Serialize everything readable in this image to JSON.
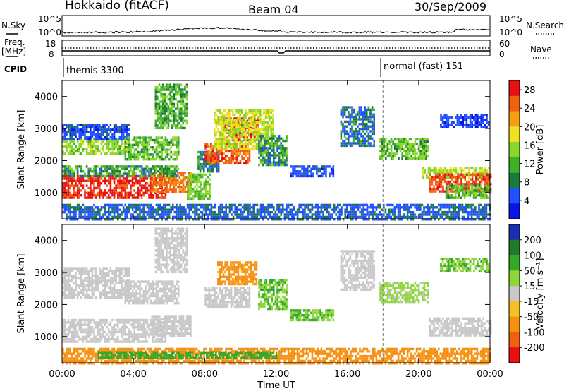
{
  "header": {
    "radar": "Hokkaido (fitACF)",
    "beam": "Beam 04",
    "date": "30/Sep/2009"
  },
  "summary": {
    "nsky_label": "N.Sky",
    "nsearch_label": "N.Search",
    "noise_ticks": [
      "10^5",
      "10^0"
    ],
    "freq_label_1": "Freq.",
    "freq_label_2": "[MHz]",
    "freq_ticks": [
      "18",
      "8"
    ],
    "nave_label": "Nave",
    "nave_ticks": [
      "60",
      "0"
    ],
    "cpid_label": "CPID",
    "cpid_modes": [
      {
        "name": "themis 3300",
        "start_hour": 0
      },
      {
        "name": "normal (fast) 151",
        "start_hour": 18
      }
    ]
  },
  "colors": {
    "power": [
      "#0a14e6",
      "#2050ff",
      "#1a7a3a",
      "#3fb02a",
      "#8ad62a",
      "#f0e020",
      "#f5a010",
      "#f06010",
      "#e81010"
    ],
    "velocity": [
      "#1a2fb0",
      "#1f7a2a",
      "#34a829",
      "#8ed63a",
      "#c8c8c8",
      "#f5c020",
      "#f59010",
      "#f06010",
      "#e81010"
    ]
  },
  "chart_data": [
    {
      "type": "heatmap",
      "name": "power",
      "ylabel": "Slant Range [km]",
      "xlabel": "",
      "x_ticks": [
        "00:00",
        "04:00",
        "08:00",
        "12:00",
        "16:00",
        "20:00",
        "00:00"
      ],
      "xlim_hours": [
        0,
        24
      ],
      "ylim": [
        180,
        4500
      ],
      "y_ticks": [
        1000,
        2000,
        3000,
        4000
      ],
      "colorbar_label": "Power [dB]",
      "colorbar_ticks": [
        4,
        8,
        12,
        16,
        20,
        24,
        28
      ],
      "colorbar_range": [
        0,
        30
      ],
      "regions": [
        {
          "t0": 0.0,
          "t1": 5.8,
          "r0": 850,
          "r1": 1550,
          "v": 29
        },
        {
          "t0": 5.0,
          "t1": 7.2,
          "r0": 1050,
          "r1": 1650,
          "v": 25
        },
        {
          "t0": 0.0,
          "t1": 6.5,
          "r0": 1500,
          "r1": 1850,
          "v": 10
        },
        {
          "t0": 0.0,
          "t1": 3.8,
          "r0": 2200,
          "r1": 2700,
          "v": 14
        },
        {
          "t0": 0.0,
          "t1": 3.8,
          "r0": 2650,
          "r1": 3150,
          "v": 6
        },
        {
          "t0": 3.5,
          "t1": 6.5,
          "r0": 2050,
          "r1": 2750,
          "v": 12
        },
        {
          "t0": 5.2,
          "t1": 7.0,
          "r0": 3000,
          "r1": 4400,
          "v": 11
        },
        {
          "t0": 7.0,
          "t1": 8.3,
          "r0": 800,
          "r1": 1600,
          "v": 13
        },
        {
          "t0": 7.6,
          "t1": 8.8,
          "r0": 1700,
          "r1": 2300,
          "v": 9
        },
        {
          "t0": 8.0,
          "t1": 10.5,
          "r0": 1950,
          "r1": 2550,
          "v": 26
        },
        {
          "t0": 9.0,
          "t1": 11.0,
          "r0": 2650,
          "r1": 3350,
          "v": 28
        },
        {
          "t0": 8.5,
          "t1": 11.8,
          "r0": 2350,
          "r1": 3600,
          "v": 16
        },
        {
          "t0": 11.0,
          "t1": 12.6,
          "r0": 1850,
          "r1": 2800,
          "v": 10
        },
        {
          "t0": 12.8,
          "t1": 15.2,
          "r0": 1550,
          "r1": 1850,
          "v": 6
        },
        {
          "t0": 15.6,
          "t1": 17.5,
          "r0": 2500,
          "r1": 3700,
          "v": 8
        },
        {
          "t0": 17.8,
          "t1": 20.5,
          "r0": 2050,
          "r1": 2700,
          "v": 12
        },
        {
          "t0": 20.2,
          "t1": 24.0,
          "r0": 1500,
          "r1": 1800,
          "v": 15
        },
        {
          "t0": 20.6,
          "t1": 24.0,
          "r0": 1050,
          "r1": 1600,
          "v": 28
        },
        {
          "t0": 21.5,
          "t1": 24.0,
          "r0": 850,
          "r1": 1250,
          "v": 12
        },
        {
          "t0": 21.2,
          "t1": 23.9,
          "r0": 3050,
          "r1": 3450,
          "v": 5
        },
        {
          "t0": 0.0,
          "t1": 24.0,
          "r0": 180,
          "r1": 650,
          "v": 7
        }
      ]
    },
    {
      "type": "heatmap",
      "name": "velocity",
      "ylabel": "Slant Range [km]",
      "xlabel": "Time UT",
      "x_ticks": [
        "00:00",
        "04:00",
        "08:00",
        "12:00",
        "16:00",
        "20:00",
        "00:00"
      ],
      "xlim_hours": [
        0,
        24
      ],
      "ylim": [
        180,
        4500
      ],
      "y_ticks": [
        1000,
        2000,
        3000,
        4000
      ],
      "colorbar_label": "Velocity [m s⁻¹]",
      "colorbar_ticks": [
        "200",
        "100",
        "50",
        "15",
        "-15",
        "-50",
        "-100",
        "-200"
      ],
      "colorbar_range": [
        -250,
        250
      ],
      "regions": [
        {
          "t0": 0.0,
          "t1": 5.8,
          "r0": 850,
          "r1": 1550,
          "v": 0
        },
        {
          "t0": 5.0,
          "t1": 7.2,
          "r0": 1050,
          "r1": 1650,
          "v": 0
        },
        {
          "t0": 0.0,
          "t1": 3.8,
          "r0": 2200,
          "r1": 3150,
          "v": 0
        },
        {
          "t0": 3.5,
          "t1": 6.5,
          "r0": 2050,
          "r1": 2750,
          "v": 0
        },
        {
          "t0": 5.2,
          "t1": 7.0,
          "r0": 3000,
          "r1": 4400,
          "v": 0
        },
        {
          "t0": 8.0,
          "t1": 10.5,
          "r0": 1950,
          "r1": 2550,
          "v": 0
        },
        {
          "t0": 8.7,
          "t1": 10.9,
          "r0": 2650,
          "r1": 3350,
          "v": -40
        },
        {
          "t0": 11.0,
          "t1": 12.6,
          "r0": 1850,
          "r1": 2800,
          "v": 30
        },
        {
          "t0": 12.8,
          "t1": 15.2,
          "r0": 1550,
          "r1": 1850,
          "v": 30
        },
        {
          "t0": 15.6,
          "t1": 17.5,
          "r0": 2500,
          "r1": 3700,
          "v": 0
        },
        {
          "t0": 17.8,
          "t1": 20.5,
          "r0": 2050,
          "r1": 2700,
          "v": 20
        },
        {
          "t0": 20.6,
          "t1": 24.0,
          "r0": 1050,
          "r1": 1600,
          "v": 0
        },
        {
          "t0": 21.2,
          "t1": 23.9,
          "r0": 3050,
          "r1": 3450,
          "v": 30
        },
        {
          "t0": 0.0,
          "t1": 24.0,
          "r0": 180,
          "r1": 650,
          "v": -60
        },
        {
          "t0": 2.0,
          "t1": 12.0,
          "r0": 300,
          "r1": 520,
          "v": 60
        }
      ]
    }
  ]
}
